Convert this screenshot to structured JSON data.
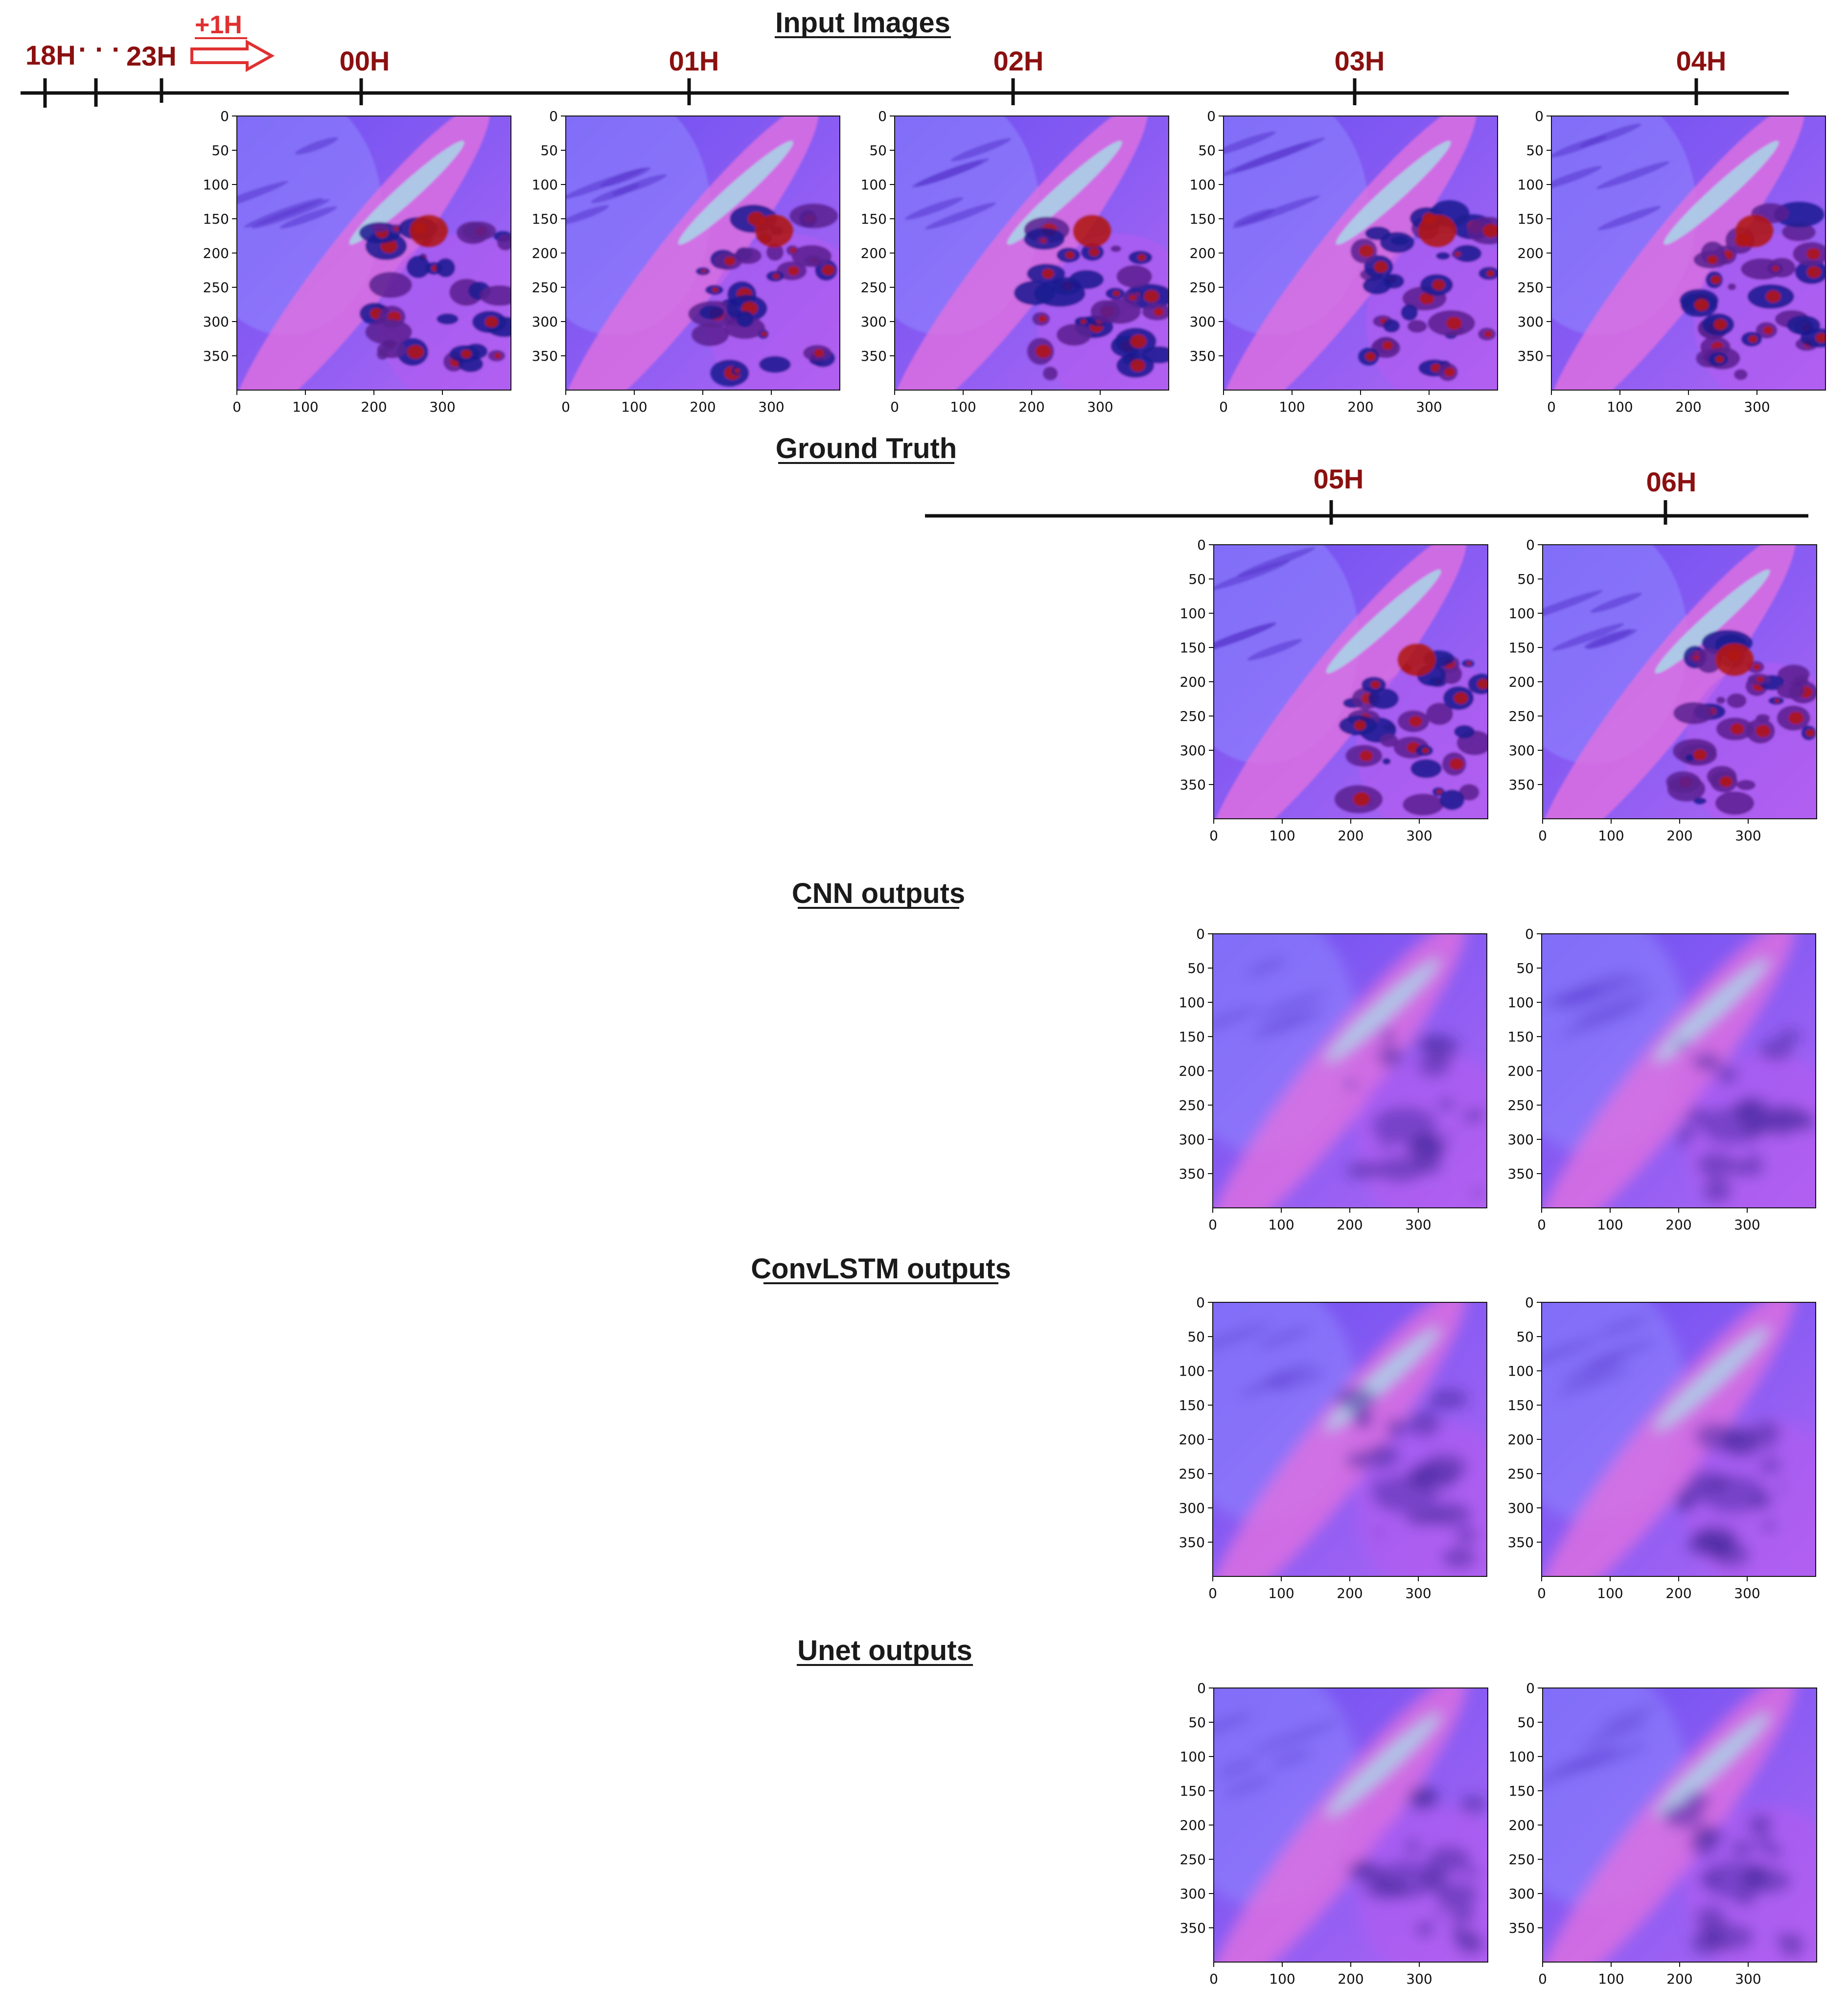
{
  "timeline": {
    "pre_labels": [
      "18H",
      "23H"
    ],
    "dots": "· · ·",
    "step_label": "+1H"
  },
  "sections": [
    {
      "id": "input-images",
      "title": "Input Images",
      "times": [
        "00H",
        "01H",
        "02H",
        "03H",
        "04H"
      ],
      "variant": "sharp"
    },
    {
      "id": "ground-truth",
      "title": "Ground Truth",
      "times": [
        "05H",
        "06H"
      ],
      "variant": "sharp"
    },
    {
      "id": "cnn-outputs",
      "title": "CNN outputs",
      "times": [],
      "variant": "blur"
    },
    {
      "id": "convlstm-outputs",
      "title": "ConvLSTM outputs",
      "times": [],
      "variant": "blur"
    },
    {
      "id": "unet-outputs",
      "title": "Unet outputs",
      "times": [],
      "variant": "blur"
    }
  ],
  "axes": {
    "x_ticks": [
      "0",
      "100",
      "200",
      "300"
    ],
    "y_ticks": [
      "0",
      "50",
      "100",
      "150",
      "200",
      "250",
      "300",
      "350"
    ],
    "range": [
      0,
      400
    ]
  },
  "colors": {
    "time_label": "#8b1010",
    "step_arrow": "#e03030",
    "axis_line": "#111111",
    "image_base": "#7a55f0",
    "image_pink": "#e070e0",
    "image_cyan": "#a8d8e8",
    "image_cloud_red": "#b01818",
    "image_cloud_dark": "#1a1a90"
  }
}
